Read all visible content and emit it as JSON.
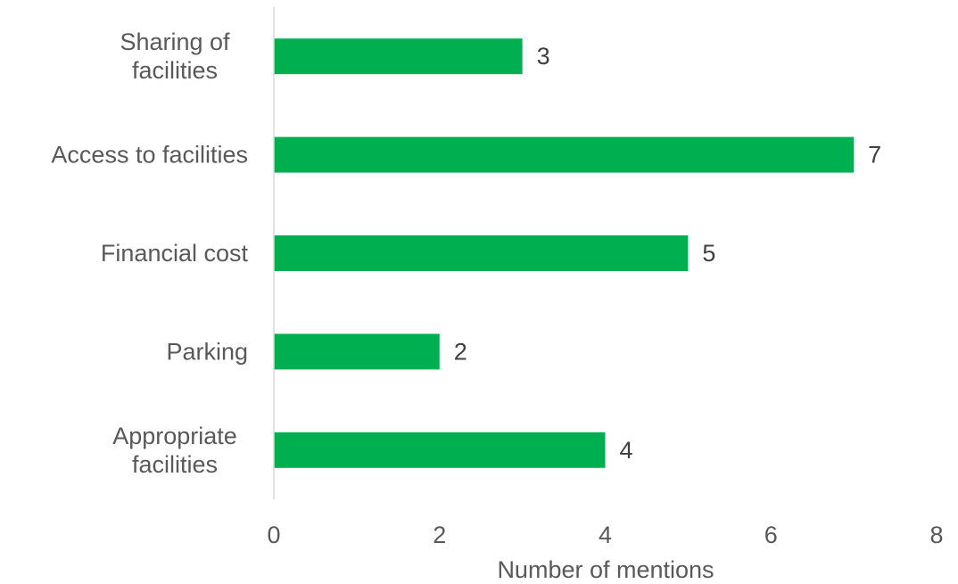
{
  "chart_data": {
    "type": "bar",
    "orientation": "horizontal",
    "title": "",
    "xlabel": "Number of mentions",
    "ylabel": "",
    "categories": [
      [
        "Sharing of",
        "facilities"
      ],
      [
        "Access to facilities"
      ],
      [
        "Financial cost"
      ],
      [
        "Parking"
      ],
      [
        "Appropriate",
        "facilities"
      ]
    ],
    "values": [
      3,
      7,
      5,
      2,
      4
    ],
    "xlim": [
      0,
      8
    ],
    "xticks": [
      0,
      2,
      4,
      6,
      8
    ],
    "grid": false,
    "legend": "none",
    "bar_color": "#00b050",
    "axis_color": "#d9d9d9"
  }
}
